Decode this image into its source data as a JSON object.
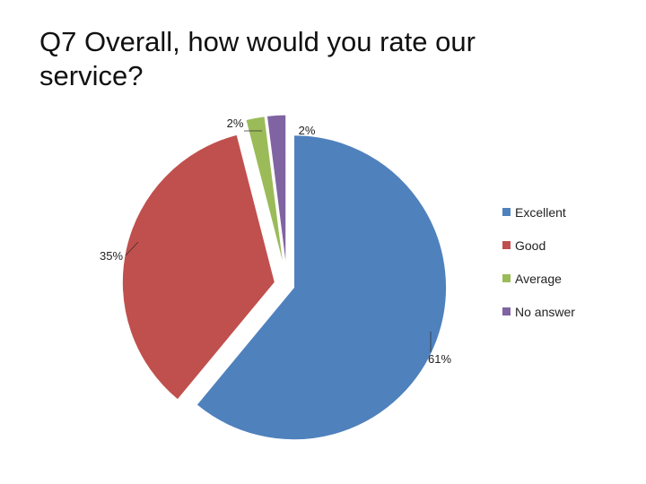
{
  "title": "Q7  Overall, how would you rate our service?",
  "chart_data": {
    "type": "pie",
    "title": "Q7  Overall, how would you rate our service?",
    "slices": [
      {
        "label": "Excellent",
        "value": 61,
        "display": "61%",
        "color": "#4F81BD"
      },
      {
        "label": "Good",
        "value": 35,
        "display": "35%",
        "color": "#C0504D"
      },
      {
        "label": "Average",
        "value": 2,
        "display": "2%",
        "color": "#9BBB59"
      },
      {
        "label": "No answer",
        "value": 2,
        "display": "2%",
        "color": "#8064A2"
      }
    ],
    "legend": "right"
  }
}
